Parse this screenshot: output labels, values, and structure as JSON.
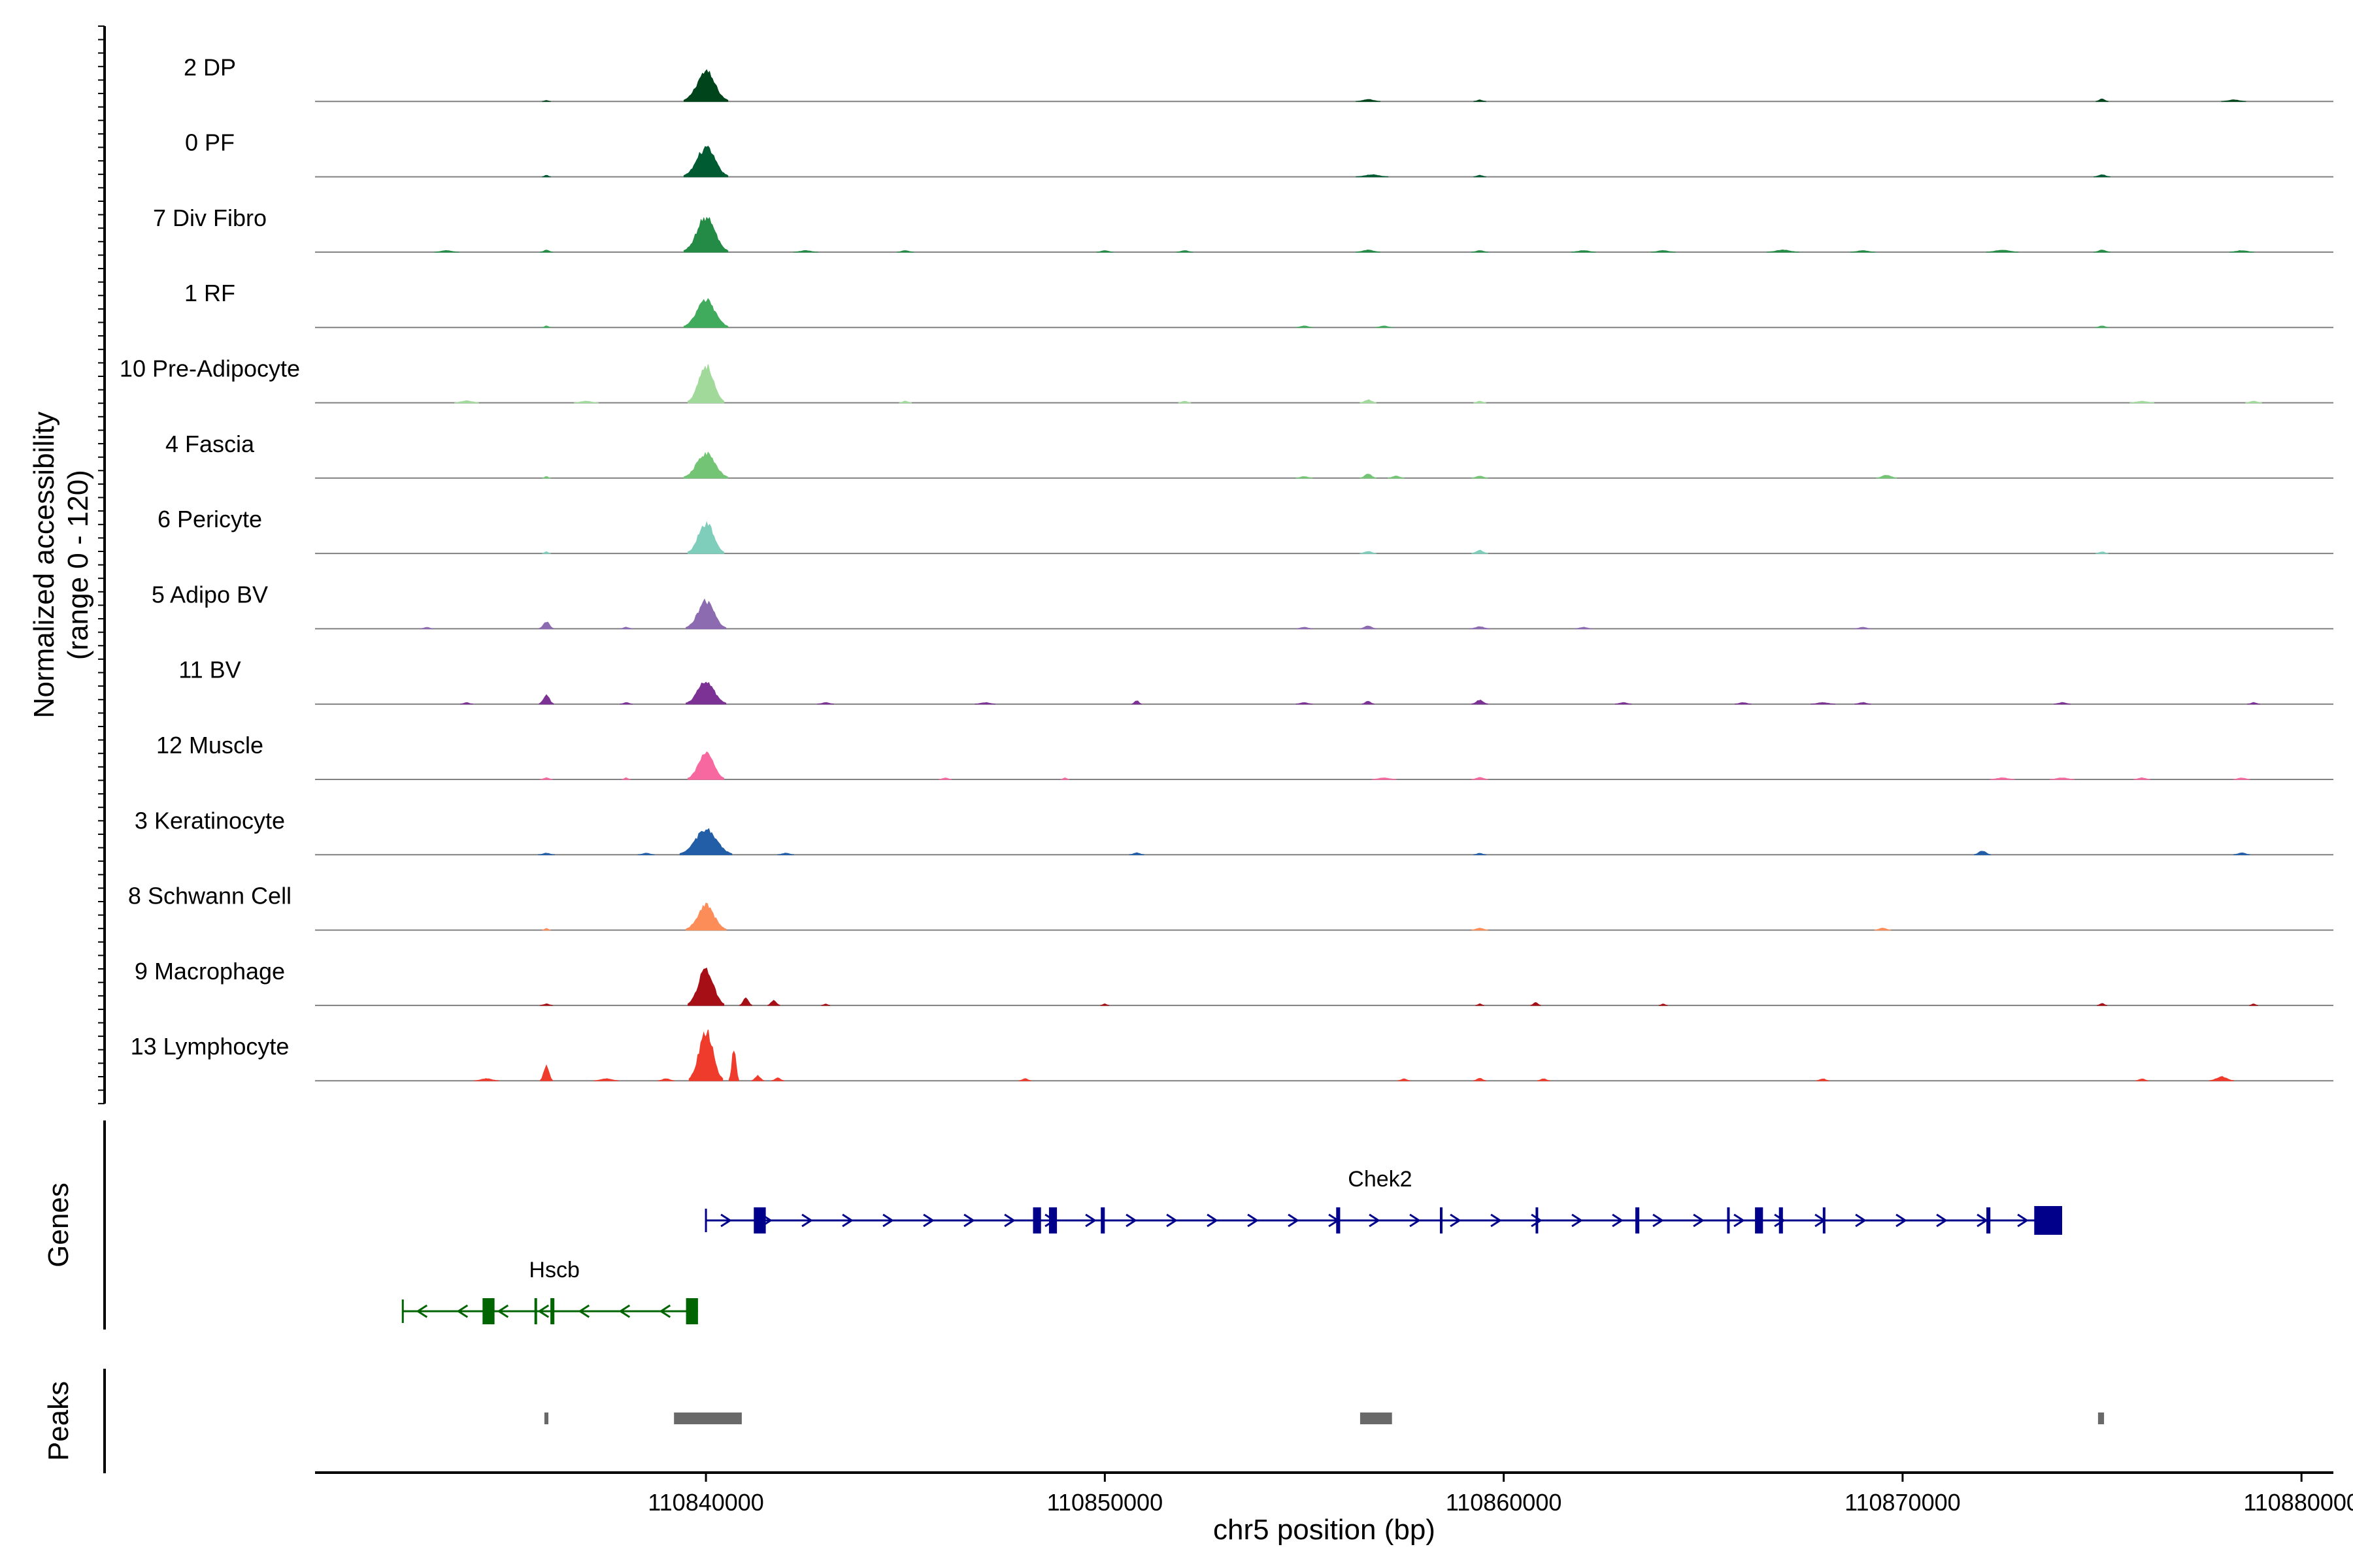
{
  "chart_data": {
    "type": "area",
    "title": "",
    "chromosome": "chr5",
    "xlabel": "chr5 position (bp)",
    "xlim": [
      110830200,
      110880800
    ],
    "xticks": [
      110840000,
      110850000,
      110860000,
      110870000,
      110880000
    ],
    "xtick_labels": [
      "110840000",
      "110850000",
      "110860000",
      "110870000",
      "110880000"
    ],
    "ylabel_line1": "Normalized accessibility",
    "ylabel_line2": "(range 0 - 120)",
    "ylim": [
      0,
      120
    ],
    "genes_label": "Genes",
    "peaks_label": "Peaks",
    "tracks": [
      {
        "name": "2 DP",
        "color": "#00441b",
        "peaks": [
          [
            110840000,
            60,
            550
          ],
          [
            110836000,
            2,
            100
          ],
          [
            110856600,
            4,
            300
          ],
          [
            110859400,
            3,
            150
          ],
          [
            110875000,
            5,
            150
          ],
          [
            110878300,
            3,
            300
          ]
        ]
      },
      {
        "name": "0 PF",
        "color": "#005a32",
        "peaks": [
          [
            110840000,
            58,
            550
          ],
          [
            110836000,
            3,
            100
          ],
          [
            110856700,
            4,
            400
          ],
          [
            110859400,
            3,
            150
          ],
          [
            110875000,
            4,
            200
          ]
        ]
      },
      {
        "name": "7 Div Fibro",
        "color": "#238b45",
        "peaks": [
          [
            110840000,
            70,
            550
          ],
          [
            110833500,
            3,
            300
          ],
          [
            110836000,
            4,
            150
          ],
          [
            110842500,
            3,
            300
          ],
          [
            110845000,
            3,
            200
          ],
          [
            110850000,
            3,
            200
          ],
          [
            110852000,
            3,
            200
          ],
          [
            110856600,
            4,
            300
          ],
          [
            110859400,
            3,
            200
          ],
          [
            110862000,
            3,
            300
          ],
          [
            110864000,
            3,
            300
          ],
          [
            110867000,
            4,
            400
          ],
          [
            110869000,
            3,
            300
          ],
          [
            110872500,
            4,
            400
          ],
          [
            110875000,
            4,
            200
          ],
          [
            110878500,
            3,
            300
          ]
        ]
      },
      {
        "name": "1 RF",
        "color": "#41ab5d",
        "peaks": [
          [
            110840000,
            55,
            550
          ],
          [
            110836000,
            3,
            100
          ],
          [
            110855000,
            3,
            200
          ],
          [
            110857000,
            3,
            200
          ],
          [
            110875000,
            3,
            150
          ]
        ]
      },
      {
        "name": "10 Pre-Adipocyte",
        "color": "#a1d99b",
        "peaks": [
          [
            110840000,
            75,
            450
          ],
          [
            110834000,
            4,
            300
          ],
          [
            110837000,
            3,
            300
          ],
          [
            110845000,
            3,
            150
          ],
          [
            110852000,
            3,
            150
          ],
          [
            110856600,
            6,
            200
          ],
          [
            110859400,
            3,
            150
          ],
          [
            110876000,
            3,
            300
          ],
          [
            110878800,
            3,
            200
          ]
        ]
      },
      {
        "name": "4 Fascia",
        "color": "#74c476",
        "peaks": [
          [
            110840000,
            50,
            550
          ],
          [
            110836000,
            3,
            100
          ],
          [
            110855000,
            3,
            200
          ],
          [
            110856600,
            8,
            200
          ],
          [
            110857300,
            4,
            200
          ],
          [
            110859400,
            4,
            200
          ],
          [
            110869600,
            6,
            250
          ]
        ]
      },
      {
        "name": "6 Pericyte",
        "color": "#7fcdbb",
        "peaks": [
          [
            110840000,
            62,
            450
          ],
          [
            110836000,
            3,
            100
          ],
          [
            110856600,
            4,
            200
          ],
          [
            110859400,
            6,
            200
          ],
          [
            110875000,
            3,
            150
          ]
        ]
      },
      {
        "name": "5 Adipo BV",
        "color": "#8c6bb1",
        "peaks": [
          [
            110840000,
            55,
            500
          ],
          [
            110836000,
            14,
            180
          ],
          [
            110833000,
            3,
            150
          ],
          [
            110838000,
            3,
            150
          ],
          [
            110855000,
            3,
            200
          ],
          [
            110856600,
            6,
            200
          ],
          [
            110859400,
            4,
            250
          ],
          [
            110862000,
            3,
            200
          ],
          [
            110869000,
            3,
            200
          ]
        ]
      },
      {
        "name": "11 BV",
        "color": "#7b3294",
        "peaks": [
          [
            110840000,
            45,
            500
          ],
          [
            110836000,
            18,
            180
          ],
          [
            110834000,
            3,
            150
          ],
          [
            110838000,
            3,
            150
          ],
          [
            110843000,
            3,
            200
          ],
          [
            110847000,
            3,
            250
          ],
          [
            110850800,
            7,
            120
          ],
          [
            110855000,
            3,
            200
          ],
          [
            110856600,
            6,
            150
          ],
          [
            110859400,
            8,
            200
          ],
          [
            110863000,
            3,
            200
          ],
          [
            110866000,
            3,
            200
          ],
          [
            110868000,
            3,
            300
          ],
          [
            110869000,
            3,
            200
          ],
          [
            110874000,
            3,
            200
          ],
          [
            110878800,
            3,
            150
          ]
        ]
      },
      {
        "name": "12 Muscle",
        "color": "#f768a1",
        "peaks": [
          [
            110840000,
            55,
            450
          ],
          [
            110836000,
            3,
            150
          ],
          [
            110838000,
            3,
            100
          ],
          [
            110846000,
            3,
            150
          ],
          [
            110849000,
            3,
            100
          ],
          [
            110857000,
            3,
            300
          ],
          [
            110859400,
            4,
            200
          ],
          [
            110872500,
            3,
            300
          ],
          [
            110874000,
            3,
            300
          ],
          [
            110876000,
            3,
            200
          ],
          [
            110878500,
            3,
            200
          ]
        ]
      },
      {
        "name": "3 Keratinocyte",
        "color": "#225ea8",
        "peaks": [
          [
            110840000,
            50,
            650
          ],
          [
            110836000,
            3,
            200
          ],
          [
            110838500,
            3,
            200
          ],
          [
            110842000,
            3,
            200
          ],
          [
            110850800,
            4,
            180
          ],
          [
            110859400,
            3,
            150
          ],
          [
            110872000,
            8,
            200
          ],
          [
            110878500,
            4,
            200
          ]
        ]
      },
      {
        "name": "8 Schwann Cell",
        "color": "#fc8d59",
        "peaks": [
          [
            110840000,
            50,
            500
          ],
          [
            110836000,
            3,
            100
          ],
          [
            110859400,
            4,
            200
          ],
          [
            110869500,
            4,
            200
          ]
        ]
      },
      {
        "name": "9 Macrophage",
        "color": "#a50f15",
        "peaks": [
          [
            110840000,
            75,
            450
          ],
          [
            110841000,
            14,
            150
          ],
          [
            110841700,
            10,
            150
          ],
          [
            110836000,
            3,
            150
          ],
          [
            110843000,
            3,
            100
          ],
          [
            110850000,
            3,
            100
          ],
          [
            110859400,
            3,
            100
          ],
          [
            110860800,
            6,
            120
          ],
          [
            110864000,
            3,
            100
          ],
          [
            110875000,
            4,
            120
          ],
          [
            110878800,
            3,
            100
          ]
        ]
      },
      {
        "name": "13 Lymphocyte",
        "color": "#ef3b2c",
        "peaks": [
          [
            110840000,
            100,
            420
          ],
          [
            110840700,
            60,
            120
          ],
          [
            110836000,
            30,
            150
          ],
          [
            110834500,
            4,
            300
          ],
          [
            110837500,
            4,
            300
          ],
          [
            110839000,
            4,
            200
          ],
          [
            110841300,
            10,
            150
          ],
          [
            110841800,
            6,
            150
          ],
          [
            110848000,
            4,
            150
          ],
          [
            110857500,
            4,
            150
          ],
          [
            110859400,
            5,
            150
          ],
          [
            110861000,
            4,
            150
          ],
          [
            110868000,
            4,
            150
          ],
          [
            110876000,
            4,
            150
          ],
          [
            110878000,
            8,
            300
          ]
        ]
      }
    ],
    "genes": [
      {
        "name": "Chek2",
        "strand": "+",
        "color": "#00008b",
        "start": 110840000,
        "end": 110874000,
        "exons": [
          [
            110841200,
            110841500
          ],
          [
            110848200,
            110848400
          ],
          [
            110848600,
            110848800
          ],
          [
            110849900,
            110850000
          ],
          [
            110855800,
            110855900
          ],
          [
            110858400,
            110858450
          ],
          [
            110860800,
            110860850
          ],
          [
            110863300,
            110863400
          ],
          [
            110865600,
            110865650
          ],
          [
            110866300,
            110866500
          ],
          [
            110866900,
            110867000
          ],
          [
            110868000,
            110868050
          ],
          [
            110872100,
            110872200
          ],
          [
            110873300,
            110874000
          ]
        ]
      },
      {
        "name": "Hscb",
        "strand": "-",
        "color": "#006400",
        "start": 110832400,
        "end": 110839800,
        "exons": [
          [
            110834400,
            110834700
          ],
          [
            110835700,
            110835750
          ],
          [
            110836100,
            110836200
          ],
          [
            110839500,
            110839800
          ]
        ]
      }
    ],
    "peaks": [
      [
        110835950,
        110836050
      ],
      [
        110839200,
        110840900
      ],
      [
        110856400,
        110857200
      ],
      [
        110874900,
        110875050
      ]
    ]
  }
}
